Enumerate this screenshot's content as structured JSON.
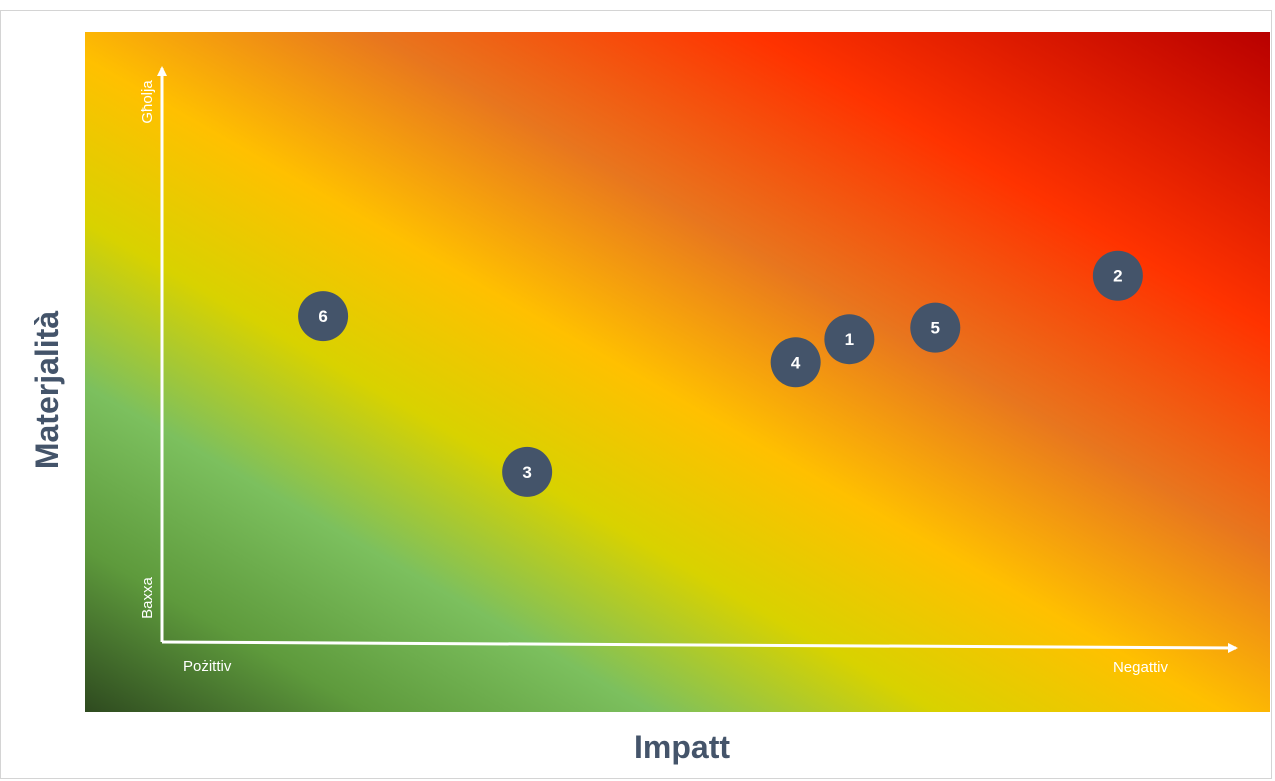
{
  "chart_data": {
    "type": "scatter",
    "title": "",
    "xlabel": "Impatt",
    "ylabel": "Materjalità",
    "x_axis": {
      "low_label": "Pożittiv",
      "high_label": "Negattiv"
    },
    "y_axis": {
      "low_label": "Baxxa",
      "high_label": "Għolja"
    },
    "xlim": [
      0,
      10
    ],
    "ylim": [
      0,
      10
    ],
    "grid": false,
    "legend": "none",
    "background": "gradient green (positive, left) to yellow to red (negative, right)",
    "point_color": "#44546a",
    "points": [
      {
        "label": "1",
        "x": 6.4,
        "y": 5.3
      },
      {
        "label": "2",
        "x": 8.9,
        "y": 6.4
      },
      {
        "label": "3",
        "x": 3.4,
        "y": 3.0
      },
      {
        "label": "4",
        "x": 5.9,
        "y": 4.9
      },
      {
        "label": "5",
        "x": 7.2,
        "y": 5.5
      },
      {
        "label": "6",
        "x": 1.5,
        "y": 5.7
      }
    ]
  }
}
